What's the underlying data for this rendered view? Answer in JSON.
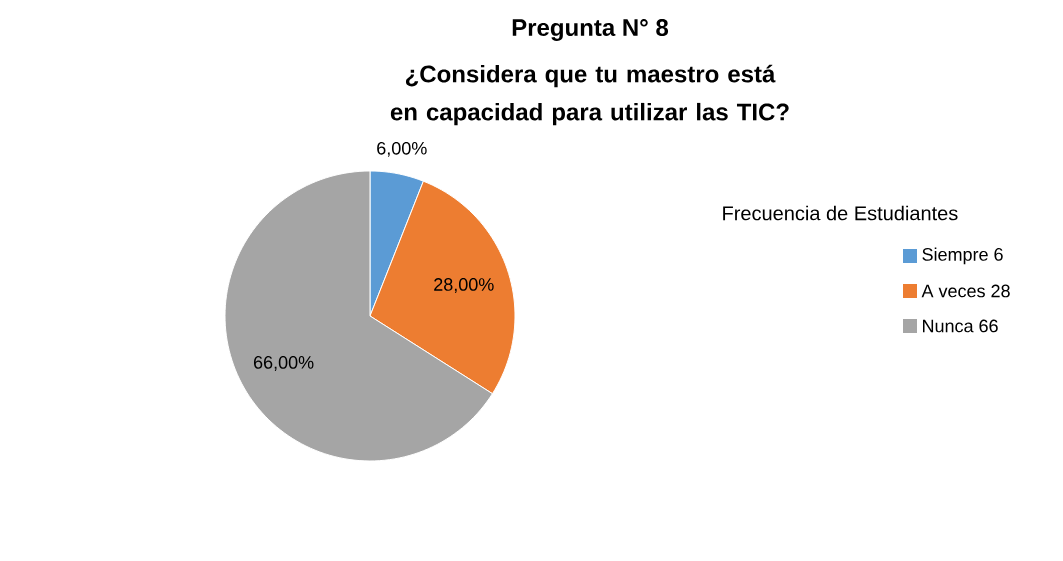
{
  "chart_data": {
    "type": "pie",
    "title": "Pregunta N° 8",
    "subtitle": "¿Considera que tu maestro está en capacidad para utilizar las TIC?",
    "legend_title": "Frecuencia de Estudiantes",
    "categories": [
      "Siempre 6",
      "A veces 28",
      "Nunca 66"
    ],
    "values": [
      6,
      28,
      66
    ],
    "colors": [
      "#5b9bd5",
      "#ed7d31",
      "#a5a5a5"
    ],
    "value_labels": [
      "6,00%",
      "28,00%",
      "66,00%"
    ],
    "legend": "right"
  }
}
